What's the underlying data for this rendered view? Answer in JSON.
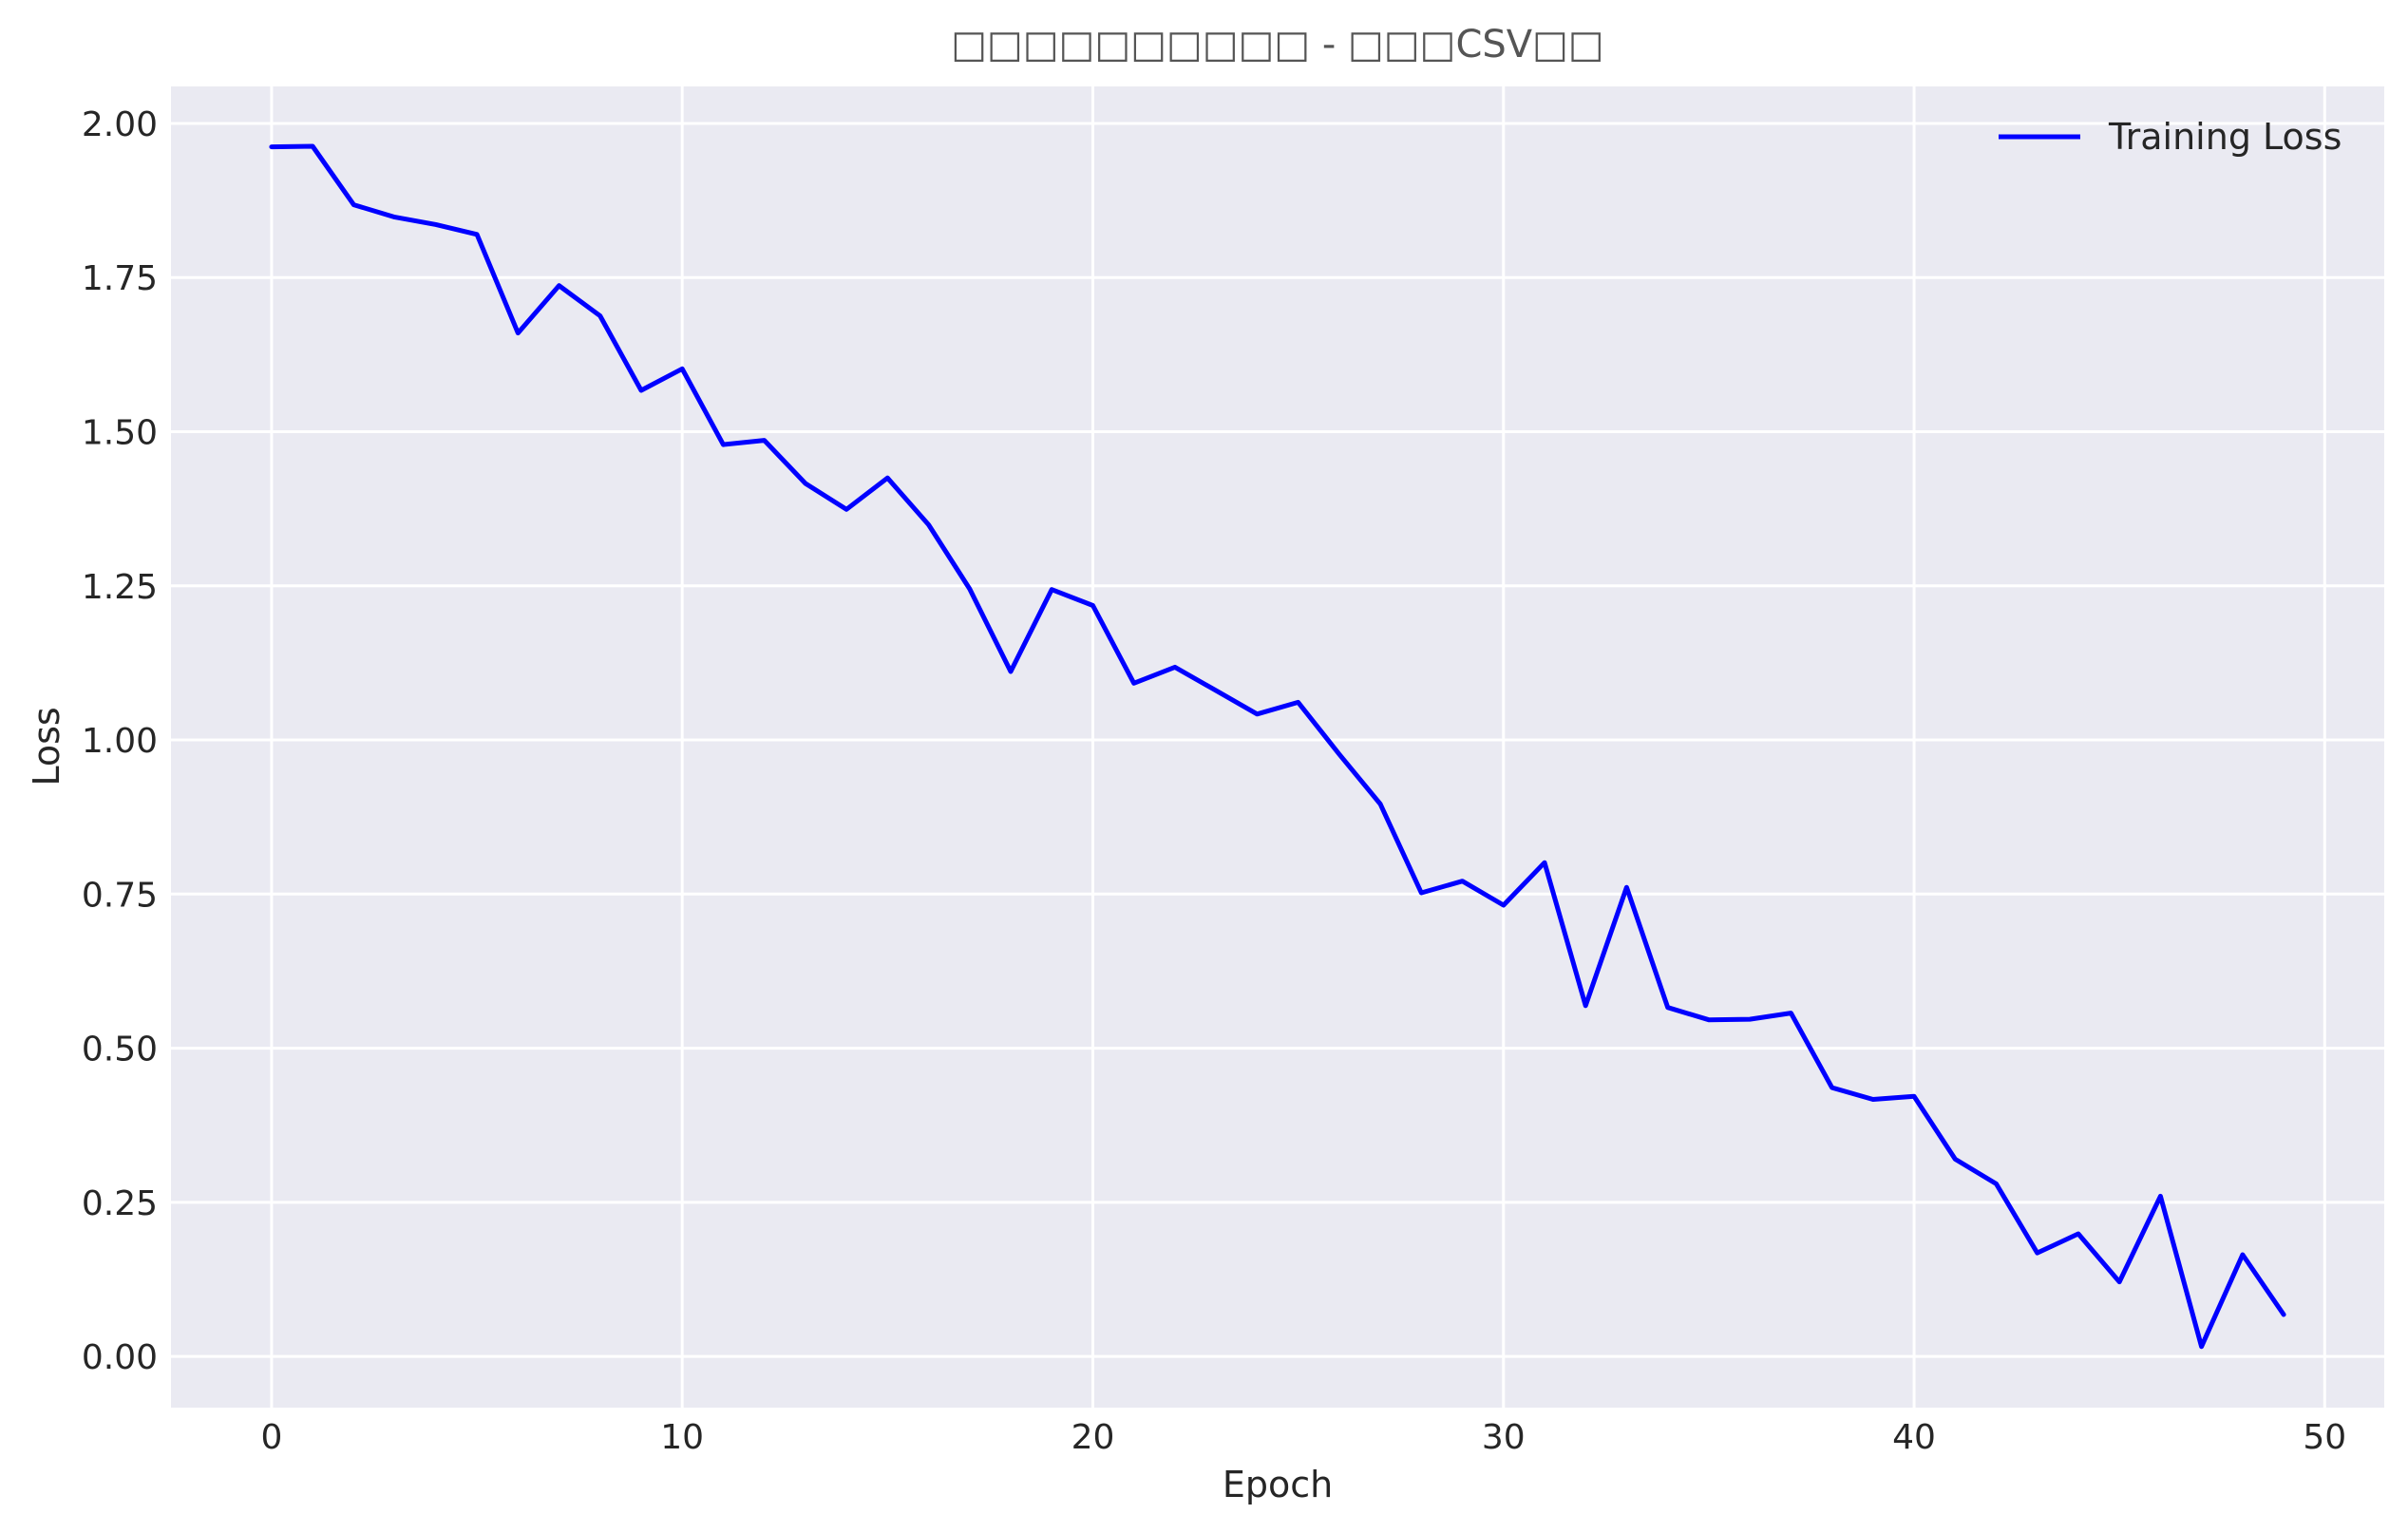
{
  "chart_data": {
    "type": "line",
    "title": "□□□□□□□□□□ - □□□CSV□□",
    "xlabel": "Epoch",
    "ylabel": "Loss",
    "xlim": [
      -2.45,
      51.45
    ],
    "ylim": [
      -0.083,
      2.06
    ],
    "xticks": [
      0,
      10,
      20,
      30,
      40,
      50
    ],
    "yticks": [
      0.0,
      0.25,
      0.5,
      0.75,
      1.0,
      1.25,
      1.5,
      1.75,
      2.0
    ],
    "ytick_labels": [
      "0.00",
      "0.25",
      "0.50",
      "0.75",
      "1.00",
      "1.25",
      "1.50",
      "1.75",
      "2.00"
    ],
    "grid": true,
    "legend_position": "top-right",
    "series": [
      {
        "name": "Training Loss",
        "color": "#0000ff",
        "x": [
          0,
          1,
          2,
          3,
          4,
          5,
          6,
          7,
          8,
          9,
          10,
          11,
          12,
          13,
          14,
          15,
          16,
          17,
          18,
          19,
          20,
          21,
          22,
          23,
          24,
          25,
          26,
          27,
          28,
          29,
          30,
          31,
          32,
          33,
          34,
          35,
          36,
          37,
          38,
          39,
          40,
          41,
          42,
          43,
          44,
          45,
          46,
          47,
          48,
          49
        ],
        "y": [
          1.962,
          1.963,
          1.868,
          1.848,
          1.836,
          1.82,
          1.66,
          1.737,
          1.688,
          1.567,
          1.602,
          1.479,
          1.486,
          1.416,
          1.374,
          1.425,
          1.349,
          1.245,
          1.111,
          1.244,
          1.218,
          1.092,
          1.118,
          1.08,
          1.042,
          1.061,
          0.977,
          0.896,
          0.752,
          0.771,
          0.732,
          0.801,
          0.569,
          0.761,
          0.566,
          0.546,
          0.547,
          0.557,
          0.436,
          0.417,
          0.422,
          0.32,
          0.28,
          0.168,
          0.199,
          0.121,
          0.26,
          0.016,
          0.165,
          0.068
        ]
      }
    ]
  }
}
